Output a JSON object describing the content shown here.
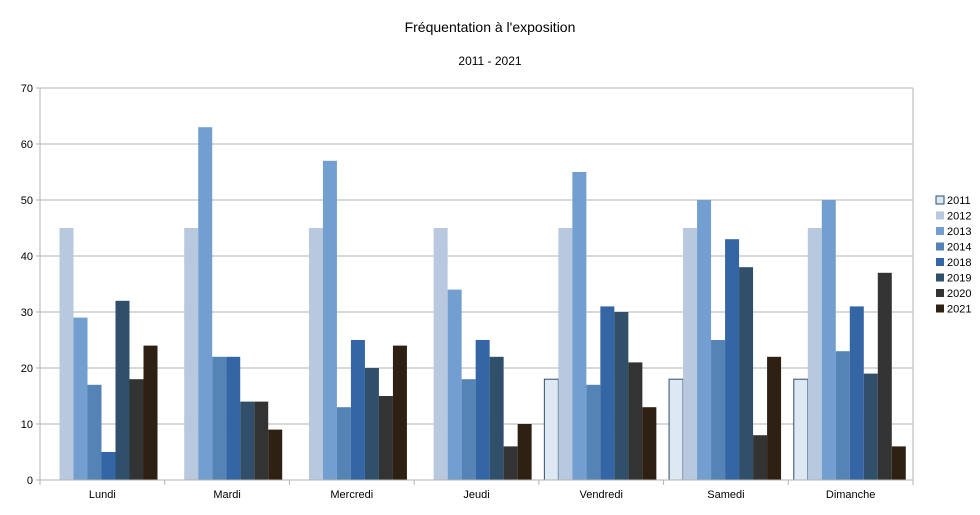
{
  "chart_data": {
    "type": "bar",
    "title": "Fréquentation à l'exposition",
    "subtitle": "2011 - 2021",
    "xlabel": "",
    "ylabel": "",
    "ylim": [
      0,
      70
    ],
    "yticks": [
      0,
      10,
      20,
      30,
      40,
      50,
      60,
      70
    ],
    "grid": true,
    "legend_position": "right",
    "categories": [
      "Lundi",
      "Mardi",
      "Mercredi",
      "Jeudi",
      "Vendredi",
      "Samedi",
      "Dimanche"
    ],
    "series": [
      {
        "name": "2011",
        "color": "#dde8f3",
        "values": [
          0,
          0,
          0,
          0,
          18,
          18,
          18
        ]
      },
      {
        "name": "2012",
        "color": "#b8c9df",
        "values": [
          45,
          45,
          45,
          45,
          45,
          45,
          45
        ]
      },
      {
        "name": "2013",
        "color": "#729fcf",
        "values": [
          29,
          63,
          57,
          34,
          55,
          50,
          50
        ]
      },
      {
        "name": "2014",
        "color": "#5483b6",
        "values": [
          17,
          22,
          13,
          18,
          17,
          25,
          23
        ]
      },
      {
        "name": "2018",
        "color": "#3465a4",
        "values": [
          5,
          22,
          25,
          25,
          31,
          43,
          31
        ]
      },
      {
        "name": "2019",
        "color": "#2f4f6b",
        "values": [
          32,
          14,
          20,
          22,
          30,
          38,
          19
        ]
      },
      {
        "name": "2020",
        "color": "#333333",
        "values": [
          18,
          14,
          15,
          6,
          21,
          8,
          37
        ]
      },
      {
        "name": "2021",
        "color": "#2e2113",
        "values": [
          24,
          9,
          24,
          10,
          13,
          22,
          6
        ]
      }
    ]
  }
}
